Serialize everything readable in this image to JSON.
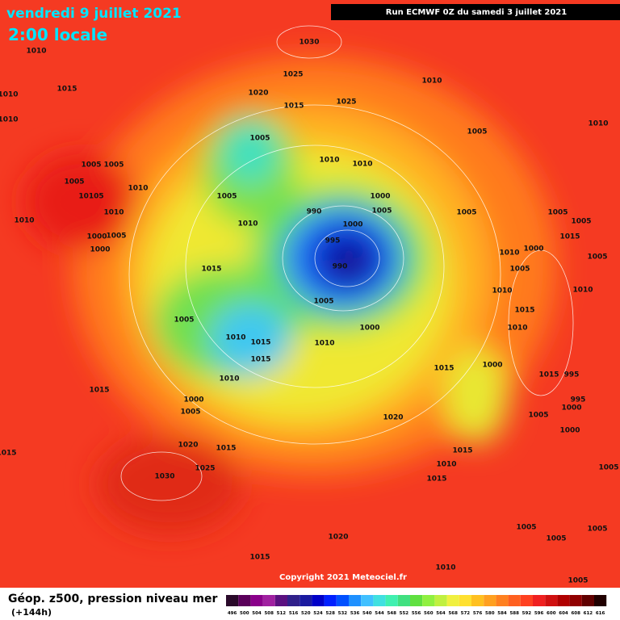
{
  "header": {
    "title": "vendredi 9 juillet 2021",
    "subtitle": "2:00 locale",
    "run": "Run ECMWF 0Z du samedi 3 juillet 2021"
  },
  "copyright": "Copyright 2021 Meteociel.fr",
  "footer": {
    "label": "Géop. z500, pression niveau mer",
    "lead": "(+144h)"
  },
  "legend": {
    "values": [
      496,
      500,
      504,
      508,
      512,
      516,
      520,
      524,
      528,
      532,
      536,
      540,
      544,
      548,
      552,
      556,
      560,
      564,
      568,
      572,
      576,
      580,
      584,
      588,
      592,
      596,
      600,
      604,
      608,
      612,
      616
    ],
    "colors": [
      "#2a0a2a",
      "#5a005a",
      "#8a008a",
      "#a020a0",
      "#5a1080",
      "#30208a",
      "#1a1aa0",
      "#0000c8",
      "#0020ff",
      "#0050ff",
      "#1e90ff",
      "#40c0ff",
      "#40e0e0",
      "#40f0b0",
      "#40e080",
      "#60e040",
      "#90f040",
      "#c0f040",
      "#f0f040",
      "#ffe030",
      "#ffc020",
      "#ffa020",
      "#ff8020",
      "#ff6020",
      "#ff4020",
      "#f02020",
      "#d01010",
      "#b00000",
      "#900000",
      "#600000",
      "#200000"
    ]
  },
  "isobar_labels": [
    1030,
    1010,
    1025,
    1010,
    1010,
    1015,
    1020,
    1015,
    1025,
    1010,
    1010,
    1005,
    1005,
    1005,
    1005,
    1010,
    1010,
    1005,
    1010,
    10105,
    1005,
    1000,
    1010,
    990,
    1005,
    1005,
    1005,
    1010,
    1010,
    1000,
    1005,
    1000,
    1005,
    995,
    1015,
    1000,
    1000,
    1010,
    1005,
    990,
    1015,
    1005,
    1010,
    1005,
    1010,
    1015,
    1005,
    1000,
    1010,
    1010,
    1015,
    1010,
    1015,
    1000,
    1015,
    1015,
    995,
    1010,
    1015,
    1000,
    995,
    1005,
    1020,
    1005,
    1000,
    1000,
    1020,
    1015,
    1015,
    1015,
    1010,
    1025,
    1005,
    1030,
    1015,
    1005,
    1020,
    1005,
    1005,
    1015,
    1010,
    1005
  ]
}
